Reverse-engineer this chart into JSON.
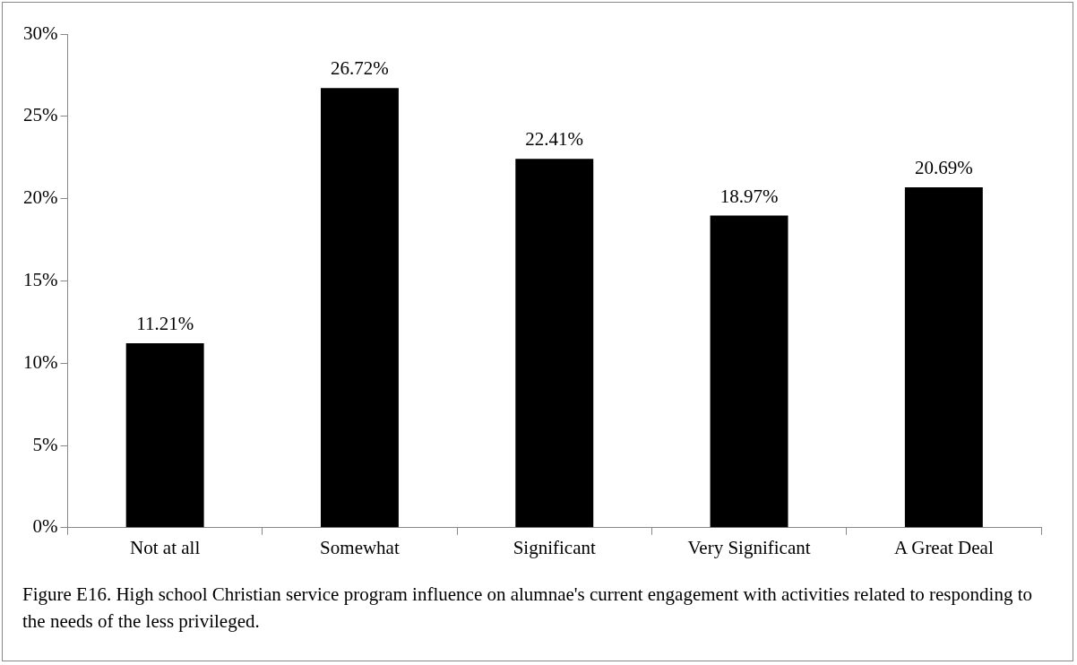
{
  "chart_data": {
    "type": "bar",
    "categories": [
      "Not at all",
      "Somewhat",
      "Significant",
      "Very Significant",
      "A Great Deal"
    ],
    "values": [
      11.21,
      26.72,
      22.41,
      18.97,
      20.69
    ],
    "color": "#000000",
    "value_labels": [
      "11.21%",
      "26.72%",
      "22.41%",
      "18.97%",
      "20.69%"
    ],
    "ylim": [
      0,
      30
    ],
    "yticks": [
      {
        "value": 0,
        "label": "0%"
      },
      {
        "value": 5,
        "label": "5%"
      },
      {
        "value": 10,
        "label": "10%"
      },
      {
        "value": 15,
        "label": "15%"
      },
      {
        "value": 20,
        "label": "20%"
      },
      {
        "value": 25,
        "label": "25%"
      },
      {
        "value": 30,
        "label": "30%"
      }
    ],
    "grid": false,
    "legend": false,
    "annotations": [
      "Figure E16. High school Christian service program influence on alumnae's current engagement with activities related to responding to the needs of the less privileged."
    ]
  }
}
